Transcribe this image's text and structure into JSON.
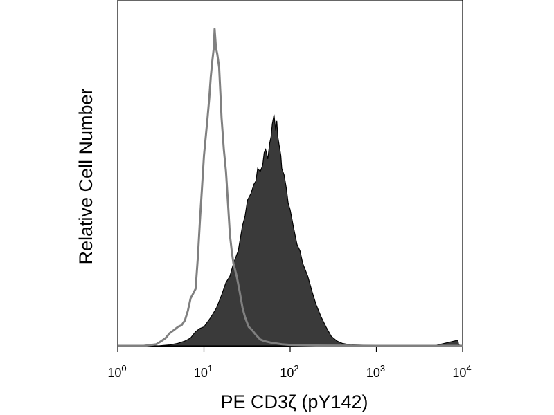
{
  "chart_data": {
    "type": "area",
    "xscale": "log",
    "xlim": [
      1,
      10000
    ],
    "ylim": [
      0,
      100
    ],
    "xlabel": "PE CD3ζ (pY142)",
    "ylabel": "Relative Cell Number",
    "xticks": [
      {
        "value": 1,
        "base": "10",
        "exp": "0"
      },
      {
        "value": 10,
        "base": "10",
        "exp": "1"
      },
      {
        "value": 100,
        "base": "10",
        "exp": "2"
      },
      {
        "value": 1000,
        "base": "10",
        "exp": "3"
      },
      {
        "value": 10000,
        "base": "10",
        "exp": "4"
      }
    ],
    "grid": false,
    "legend": "none",
    "series": [
      {
        "style": "filled",
        "color": "#3a3a3a",
        "stroke": "#000000",
        "x": [
          1,
          2,
          3,
          4,
          5,
          6,
          7,
          8,
          9,
          10,
          12,
          14,
          16,
          18,
          20,
          22,
          25,
          28,
          30,
          32,
          35,
          38,
          40,
          42,
          45,
          48,
          50,
          52,
          55,
          58,
          60,
          62,
          65,
          68,
          70,
          72,
          75,
          78,
          80,
          85,
          90,
          95,
          100,
          110,
          120,
          130,
          140,
          160,
          180,
          200,
          230,
          260,
          300,
          350,
          400,
          500,
          700,
          1000,
          2000,
          5000,
          8800,
          9000,
          10000
        ],
        "y": [
          0,
          0,
          0,
          0.3,
          0.8,
          1.5,
          2.5,
          4.5,
          5.5,
          6,
          9,
          12,
          16,
          20,
          22,
          26,
          30,
          38,
          41,
          46,
          48,
          51,
          52,
          56,
          55,
          57,
          61,
          62,
          59,
          64,
          66,
          70,
          73,
          68,
          71,
          66,
          63,
          60,
          56,
          54,
          50,
          45,
          43,
          37,
          32,
          30,
          26,
          22,
          17,
          13,
          9,
          6,
          3,
          1.5,
          0.8,
          0.3,
          0.2,
          0.2,
          0.2,
          0.2,
          1.8,
          0.3,
          0
        ]
      },
      {
        "style": "outline",
        "color": "#808080",
        "x": [
          1,
          2,
          2.8,
          3.2,
          3.6,
          4,
          4.5,
          5,
          5.5,
          6,
          6.5,
          7,
          7.5,
          8,
          8.5,
          9,
          9.5,
          10,
          10.5,
          11,
          11.5,
          12,
          12.5,
          13,
          13.3,
          13.8,
          14.3,
          15,
          15.5,
          16,
          17,
          18,
          19,
          20,
          21,
          22,
          24,
          26,
          28,
          30,
          33,
          36,
          40,
          45,
          50,
          60,
          80,
          100,
          200,
          1000,
          10000
        ],
        "y": [
          0,
          0,
          0.5,
          1.5,
          2.5,
          4,
          5,
          6,
          6.5,
          8,
          11,
          15,
          16.5,
          18,
          28,
          40,
          50,
          60,
          66,
          72,
          78,
          85,
          90,
          94,
          100,
          94,
          92,
          88,
          80,
          72,
          62,
          55,
          45,
          35,
          30,
          26,
          22,
          17,
          12,
          9,
          6,
          5,
          3.5,
          2,
          1.5,
          1,
          0.5,
          0.3,
          0.1,
          0,
          0
        ]
      }
    ]
  }
}
